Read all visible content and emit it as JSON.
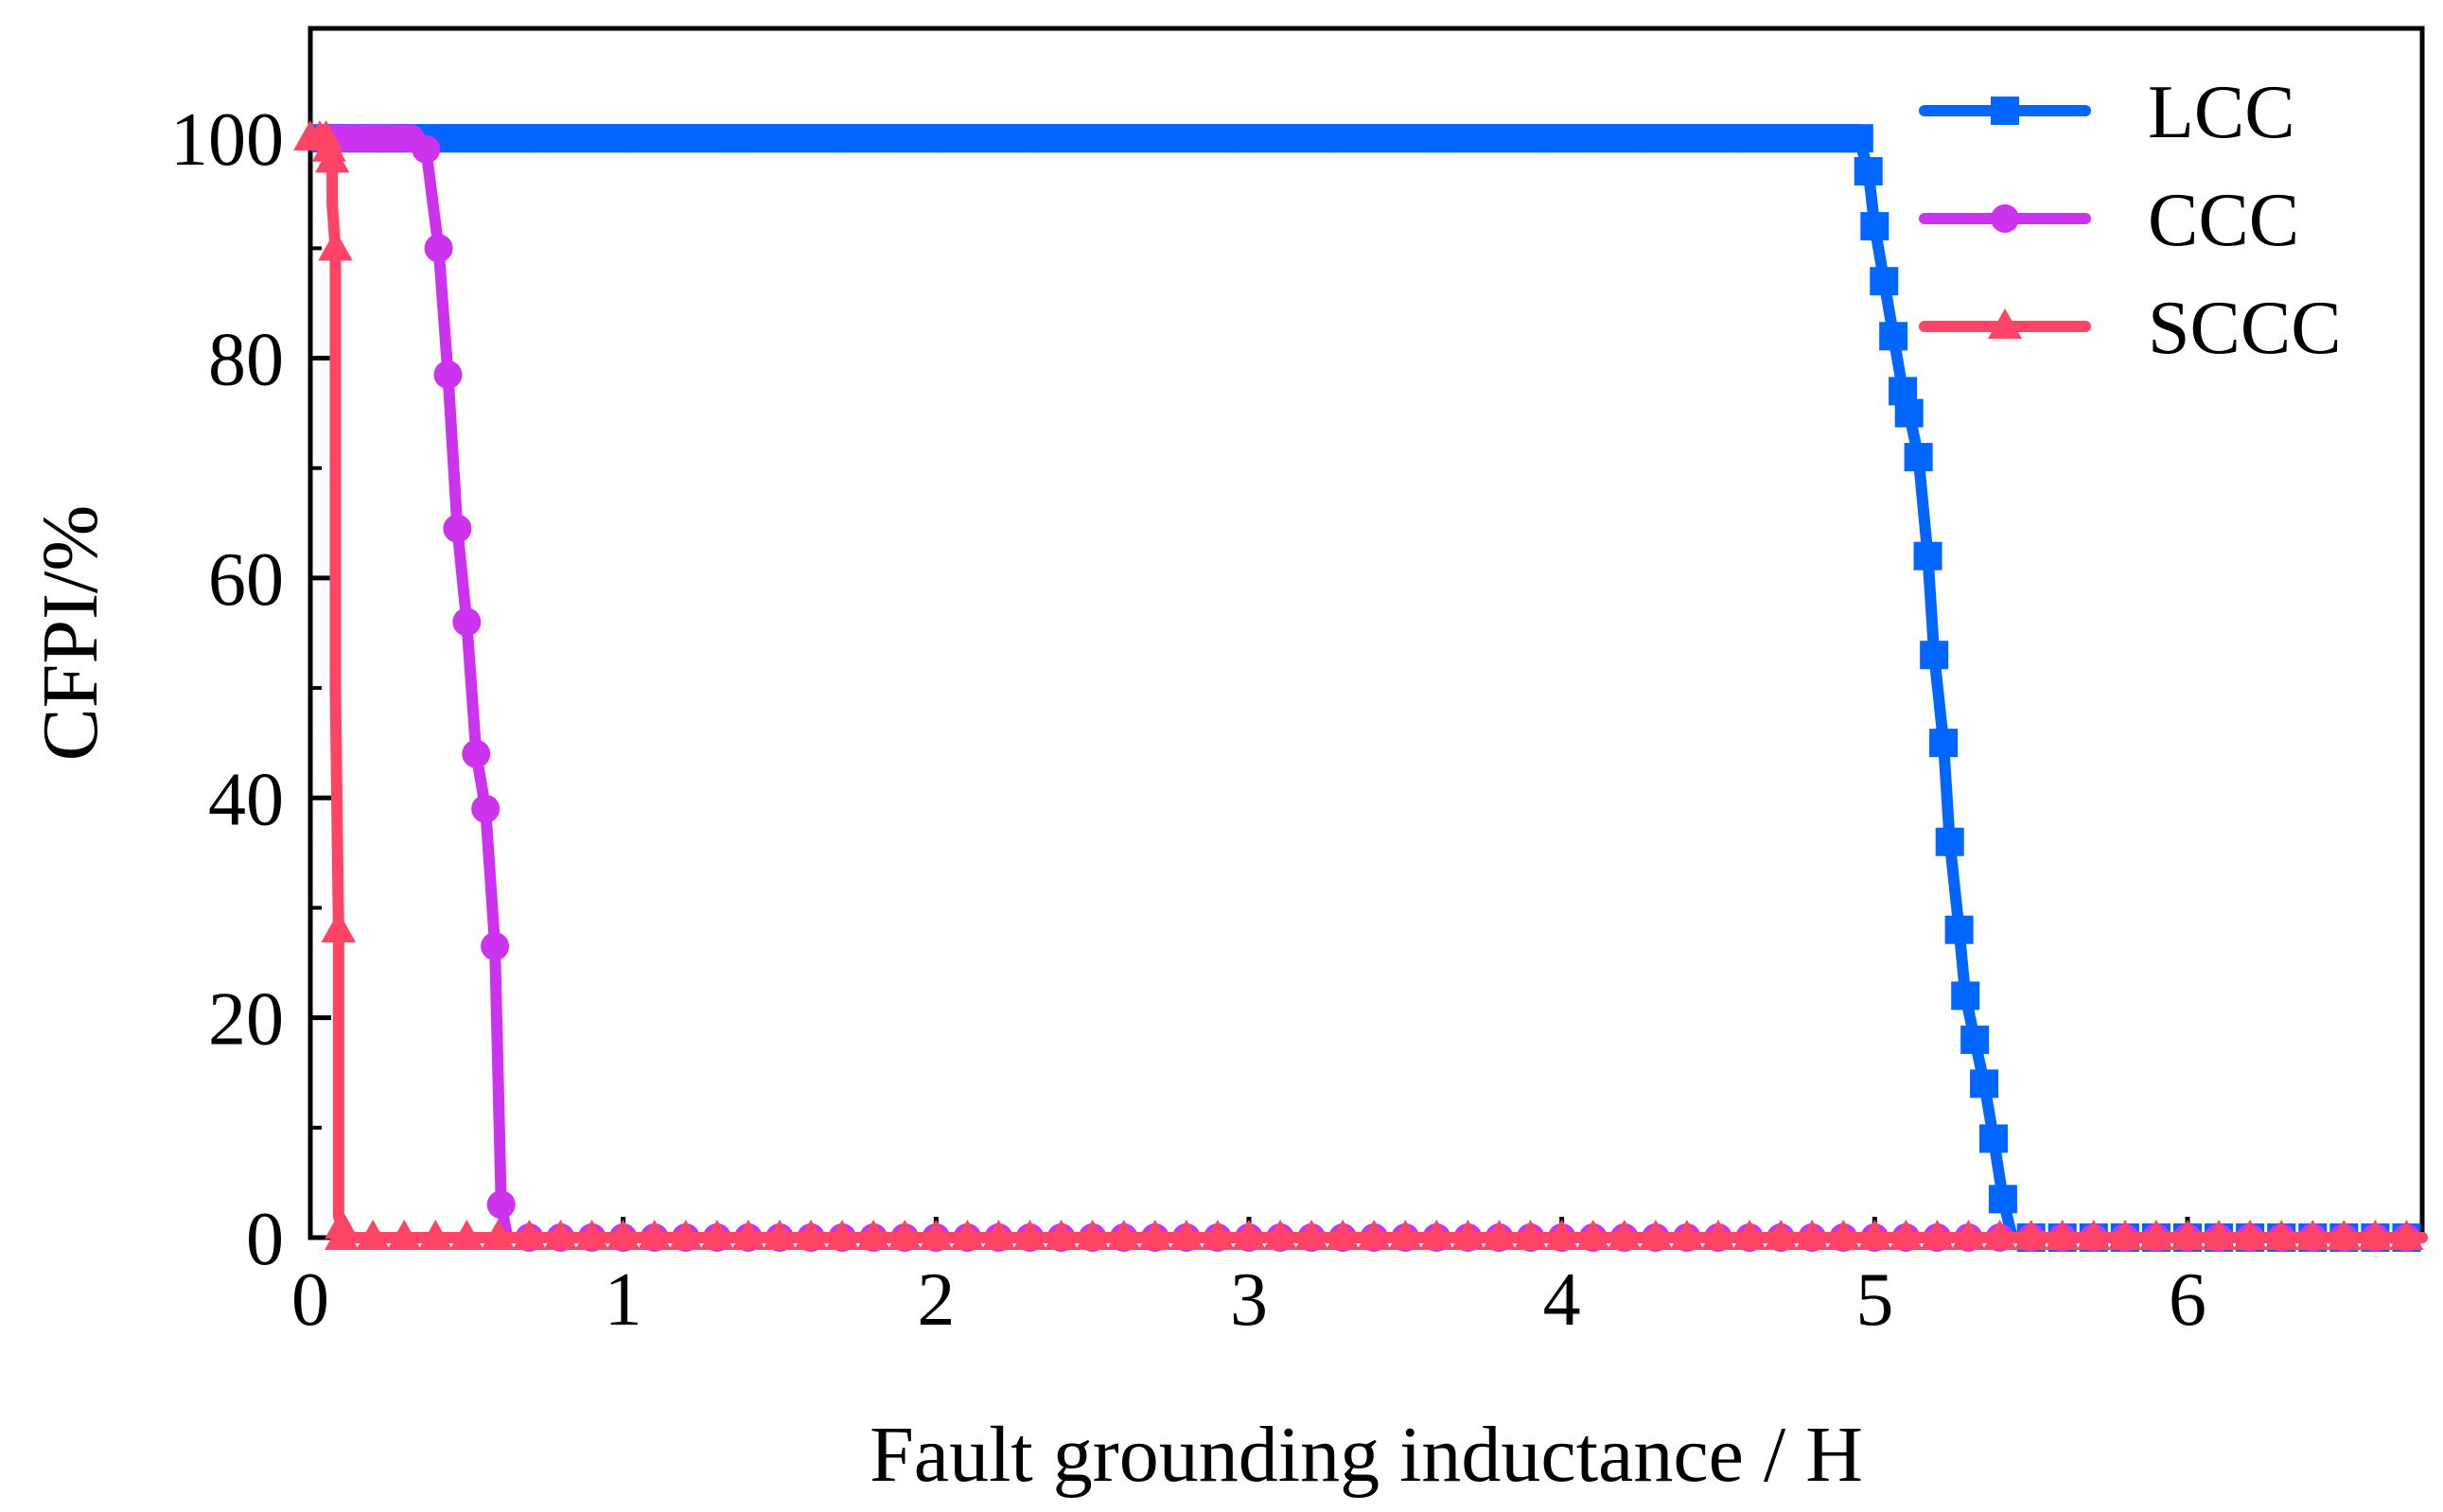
{
  "chart_data": {
    "type": "line",
    "title": "",
    "xlabel": "Fault grounding inductance / H",
    "ylabel": "CFPI/%",
    "xlim": [
      0,
      6.75
    ],
    "ylim": [
      0,
      110
    ],
    "xticks": [
      "0",
      "1",
      "2",
      "3",
      "4",
      "5",
      "6"
    ],
    "yticks": [
      "0",
      "20",
      "40",
      "60",
      "80",
      "100"
    ],
    "grid": false,
    "legend_position": "top-right",
    "series": [
      {
        "name": "LCC",
        "color": "#0066ff",
        "marker": "square",
        "x": [
          0.05,
          4.95,
          4.98,
          5.0,
          5.03,
          5.06,
          5.09,
          5.11,
          5.14,
          5.17,
          5.19,
          5.22,
          5.24,
          5.27,
          5.29,
          5.32,
          5.35,
          5.38,
          5.41,
          5.44,
          6.75
        ],
        "y": [
          100,
          100,
          97,
          92,
          87,
          82,
          77,
          75,
          71,
          62,
          53,
          45,
          36,
          28,
          22,
          18,
          14,
          9,
          3.5,
          0,
          0
        ],
        "marker_x": [
          4.95,
          4.98,
          5.0,
          5.03,
          5.06,
          5.09,
          5.11,
          5.14,
          5.17,
          5.19,
          5.22,
          5.24,
          5.27,
          5.29,
          5.32,
          5.35,
          5.38,
          5.41
        ]
      },
      {
        "name": "CCC",
        "color": "#cc33ee",
        "marker": "circle",
        "x": [
          0.05,
          0.3,
          0.37,
          0.41,
          0.44,
          0.47,
          0.5,
          0.53,
          0.56,
          0.59,
          0.61,
          0.63,
          6.75
        ],
        "y": [
          100,
          100,
          99,
          90,
          78.5,
          64.5,
          56,
          44,
          39,
          26.5,
          3,
          0,
          0
        ],
        "marker_x": [
          0.37,
          0.41,
          0.44,
          0.47,
          0.5,
          0.53,
          0.56,
          0.59,
          0.61
        ]
      },
      {
        "name": "SCCC",
        "color": "#ff4466",
        "marker": "triangle",
        "x": [
          0.0,
          0.03,
          0.05,
          0.06,
          0.07,
          0.07,
          0.07,
          0.08,
          0.08,
          0.08,
          0.08,
          0.08,
          0.09,
          0.09,
          0.09,
          0.09,
          0.09,
          0.1,
          0.1,
          0.1,
          0.1,
          0.1,
          6.75
        ],
        "y": [
          100,
          100,
          100,
          99,
          98,
          96,
          94,
          90,
          86,
          81,
          70,
          50,
          28,
          12,
          7,
          4,
          2,
          1,
          0.5,
          0,
          0,
          0,
          0
        ],
        "marker_x": [
          0.0,
          0.03,
          0.05,
          0.06,
          0.07,
          0.07,
          0.07,
          0.08,
          0.08,
          0.08,
          0.08,
          0.08,
          0.09,
          0.09,
          0.09,
          0.09,
          0.09,
          0.1
        ]
      }
    ]
  }
}
